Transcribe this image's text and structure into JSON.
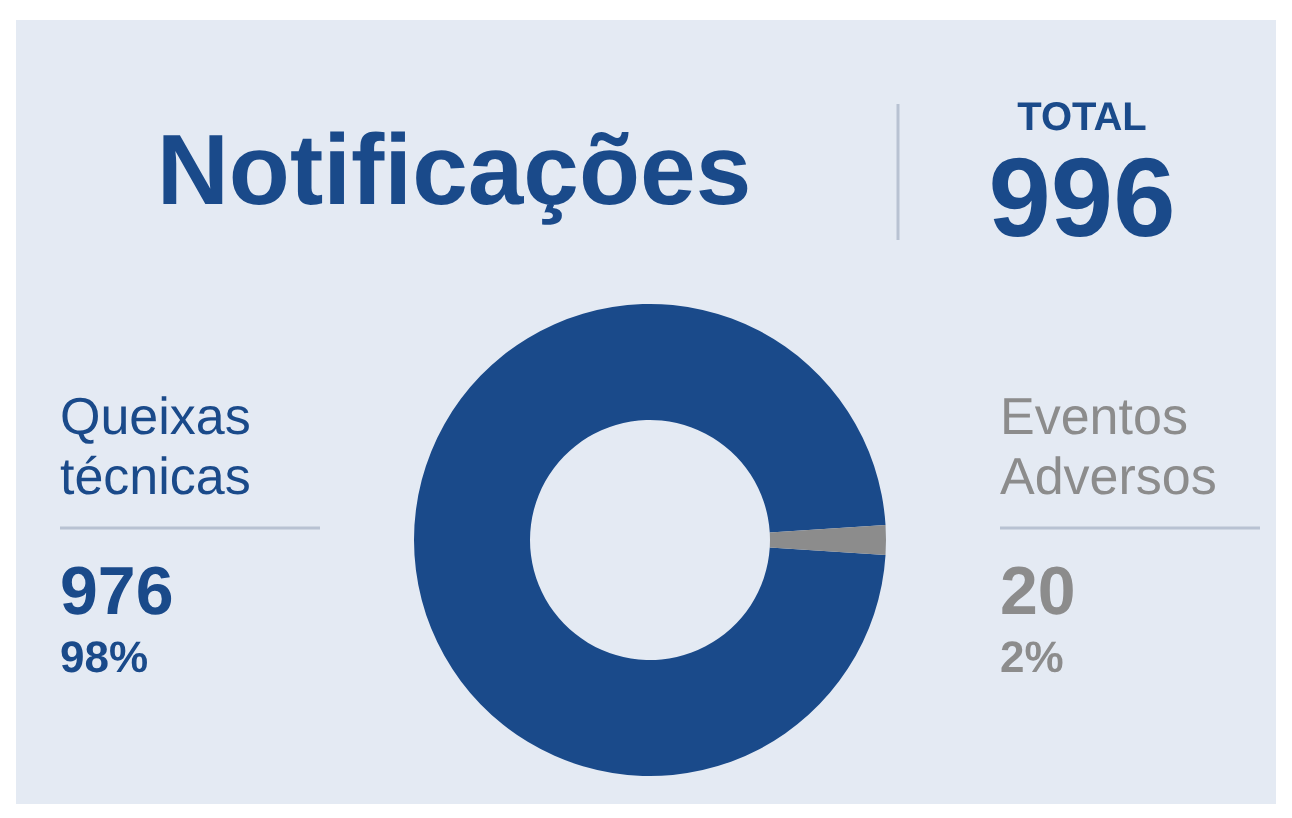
{
  "chart_data": {
    "type": "donut",
    "title": "Notificações",
    "categories": [
      "Queixas técnicas",
      "Eventos Adversos"
    ],
    "values": [
      976,
      20
    ],
    "colors": [
      "#1a4a8a",
      "#8c8c8c"
    ],
    "value_labels": [
      "976",
      "20"
    ],
    "annotations": [
      {
        "text": "TOTAL"
      },
      {
        "text": "996"
      },
      {
        "text": "98%",
        "x": "Queixas técnicas"
      },
      {
        "text": "2%",
        "x": "Eventos Adversos"
      }
    ]
  }
}
